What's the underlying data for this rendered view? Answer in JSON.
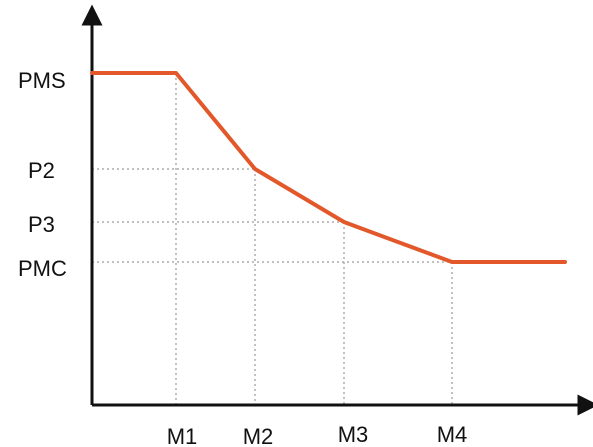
{
  "chart_data": {
    "type": "line",
    "title": "",
    "xlabel": "",
    "ylabel": "",
    "categories": [
      "M1",
      "M2",
      "M3",
      "M4"
    ],
    "y_levels": [
      "PMS",
      "P2",
      "P3",
      "PMC"
    ],
    "series": [
      {
        "points": [
          {
            "x": "start",
            "y": "PMS"
          },
          {
            "x": "M1",
            "y": "PMS"
          },
          {
            "x": "M2",
            "y": "P2"
          },
          {
            "x": "M3",
            "y": "P3"
          },
          {
            "x": "M4",
            "y": "PMC"
          },
          {
            "x": "end",
            "y": "PMC"
          }
        ]
      }
    ],
    "grid": "dotted guide lines at labeled levels",
    "legend": "none"
  },
  "colors": {
    "line": "#e2582a",
    "axis": "#111111",
    "guide": "#9a9a9a",
    "text": "#111111"
  }
}
